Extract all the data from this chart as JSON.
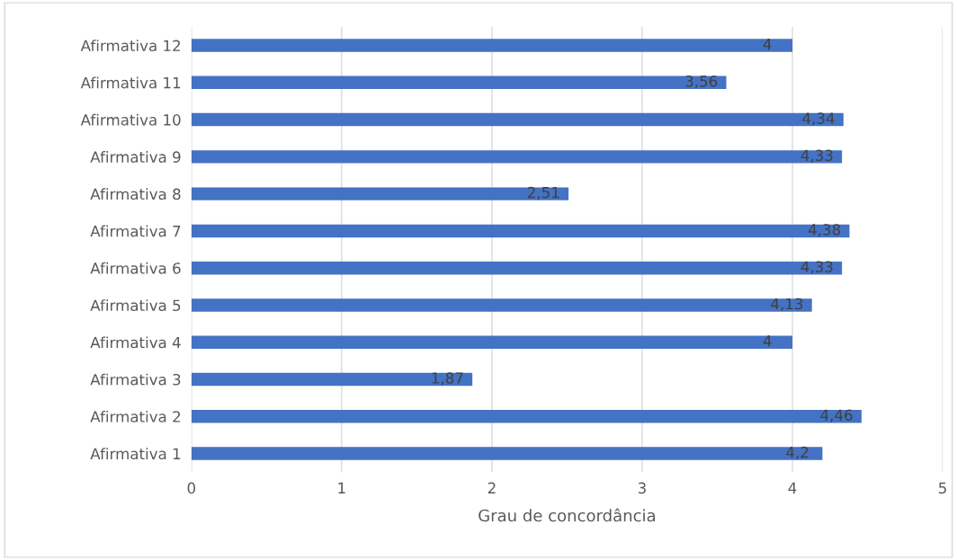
{
  "chart_data": {
    "type": "bar",
    "orientation": "horizontal",
    "xlabel": "Grau de concordância",
    "categories": [
      "Afirmativa 12",
      "Afirmativa 11",
      "Afirmativa 10",
      "Afirmativa 9",
      "Afirmativa 8",
      "Afirmativa 7",
      "Afirmativa 6",
      "Afirmativa 5",
      "Afirmativa 4",
      "Afirmativa 3",
      "Afirmativa 2",
      "Afirmativa 1"
    ],
    "values": [
      4,
      3.56,
      4.34,
      4.33,
      2.51,
      4.38,
      4.33,
      4.13,
      4,
      1.87,
      4.46,
      4.2
    ],
    "value_labels": [
      "4",
      "3,56",
      "4,34",
      "4,33",
      "2,51",
      "4,38",
      "4,33",
      "4,13",
      "4",
      "1,87",
      "4,46",
      "4,2"
    ],
    "color": "#4472c4",
    "xlim": [
      0,
      5
    ],
    "xticks": [
      0,
      1,
      2,
      3,
      4,
      5
    ],
    "grid": "x",
    "legend": false
  }
}
